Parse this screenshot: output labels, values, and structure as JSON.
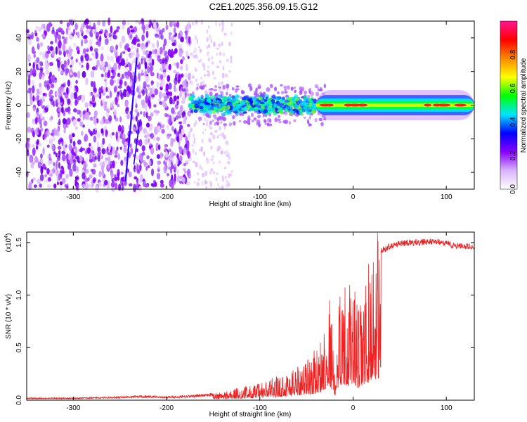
{
  "title": "C2E1.2025.356.09.15.G12",
  "chart_data": [
    {
      "type": "heatmap",
      "name": "spectrogram",
      "xlabel": "Height of straight line (km)",
      "ylabel": "Frequency (Hz)",
      "xlim": [
        -350,
        130
      ],
      "ylim": [
        -50,
        50
      ],
      "x_ticks": [
        -300,
        -200,
        -100,
        0,
        100
      ],
      "x_tick_labels": [
        "-300",
        "-200",
        "-100",
        "0",
        "100"
      ],
      "y_ticks": [
        -40,
        -20,
        0,
        20,
        40
      ],
      "y_tick_labels": [
        "-40",
        "-20",
        "0",
        "20",
        "40"
      ],
      "features": {
        "noise_region_x": [
          -350,
          -175
        ],
        "sparse_noise_x": [
          -175,
          -130
        ],
        "signal_band_center_hz": 0,
        "signal_band_x": [
          -175,
          130
        ],
        "signal_band_width_hz": [
          -6,
          6
        ],
        "tone_segment_x": [
          -40,
          130
        ],
        "streak_1": {
          "x": [
            -244,
            -232
          ],
          "y": [
            -45,
            28
          ]
        },
        "streak_2": {
          "x": [
            -235,
            -229
          ],
          "y": [
            -35,
            -10
          ]
        }
      },
      "colorbar": {
        "label": "Normalized spectral amplitude",
        "range": [
          0.0,
          1.0
        ],
        "ticks": [
          0.0,
          0.2,
          0.4,
          0.6,
          0.8
        ],
        "tick_labels": [
          "0.0",
          "0.2",
          "0.4",
          "0.6",
          "0.8"
        ],
        "colors": [
          "#ffffff",
          "#d9b3ff",
          "#8800ff",
          "#0000ff",
          "#00e5ff",
          "#00ff00",
          "#ffff00",
          "#ff8800",
          "#ff0000",
          "#ff1493"
        ]
      }
    },
    {
      "type": "line",
      "name": "snr",
      "xlabel": "Height of straight line (km)",
      "ylabel": "SNR (10 * v/v)",
      "y_multiplier": "(x10",
      "y_multiplier_exp": "4",
      "y_multiplier_close": ")",
      "xlim": [
        -350,
        130
      ],
      "ylim": [
        0,
        1.6
      ],
      "x_ticks": [
        -300,
        -200,
        -100,
        0,
        100
      ],
      "x_tick_labels": [
        "-300",
        "-200",
        "-100",
        "0",
        "100"
      ],
      "y_ticks": [
        0.0,
        0.5,
        1.0,
        1.5
      ],
      "y_tick_labels": [
        "0.0",
        "0.5",
        "1.0",
        "1.5"
      ],
      "series_color": "#ee2222",
      "series": [
        {
          "name": "SNR",
          "x": [
            -350,
            -300,
            -250,
            -225,
            -200,
            -175,
            -150,
            -125,
            -100,
            -90,
            -80,
            -70,
            -60,
            -50,
            -40,
            -35,
            -30,
            -25,
            -22,
            -20,
            -15,
            -10,
            -5,
            0,
            5,
            10,
            15,
            20,
            25,
            30,
            40,
            50,
            60,
            70,
            80,
            90,
            100,
            110,
            120,
            130
          ],
          "y": [
            0.02,
            0.02,
            0.03,
            0.04,
            0.03,
            0.04,
            0.06,
            0.1,
            0.14,
            0.18,
            0.2,
            0.25,
            0.3,
            0.35,
            0.42,
            0.5,
            0.7,
            0.9,
            0.6,
            0.2,
            0.95,
            1.0,
            0.9,
            1.05,
            0.75,
            0.85,
            1.05,
            1.25,
            1.35,
            1.45,
            1.5,
            1.52,
            1.53,
            1.53,
            1.54,
            1.54,
            1.52,
            1.5,
            1.5,
            1.48
          ]
        }
      ]
    }
  ]
}
